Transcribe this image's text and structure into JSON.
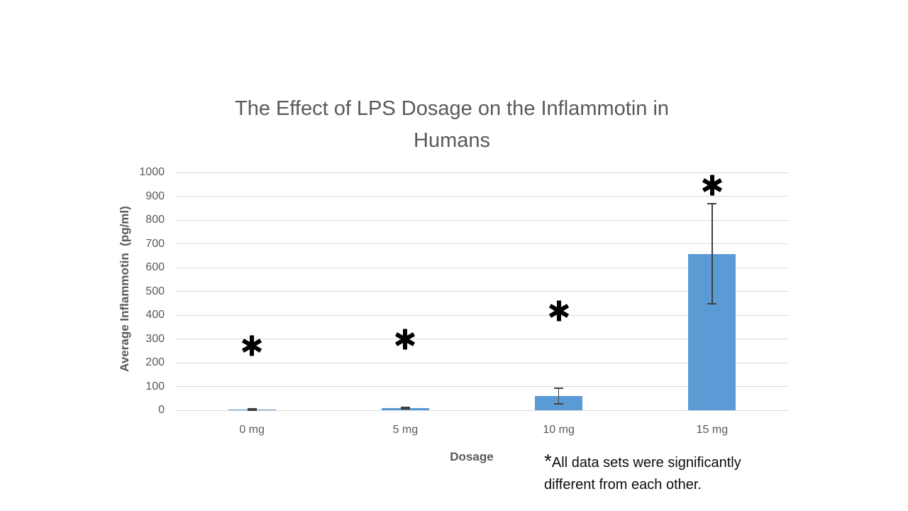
{
  "slide": {
    "background": "#ffffff"
  },
  "chart_data": {
    "type": "bar",
    "title": "The Effect of LPS Dosage on the Inflammotin in Humans",
    "title_lines": [
      "The Effect of LPS Dosage on the Inflammotin in",
      "Humans"
    ],
    "xlabel": "Dosage",
    "ylabel": "Average Inflammotin  (pg/ml)",
    "categories": [
      "0 mg",
      "5 mg",
      "10 mg",
      "15 mg"
    ],
    "values": [
      2,
      9,
      60,
      657
    ],
    "error_bars": {
      "low": [
        0,
        6,
        27,
        447
      ],
      "high": [
        5,
        12,
        93,
        868
      ]
    },
    "annotations": [
      {
        "category": "0 mg",
        "symbol": "*",
        "y": 272
      },
      {
        "category": "5 mg",
        "symbol": "*",
        "y": 298
      },
      {
        "category": "10 mg",
        "symbol": "*",
        "y": 418
      },
      {
        "category": "15 mg",
        "symbol": "*",
        "y": 947
      }
    ],
    "ylim": [
      0,
      1000
    ],
    "yticks": [
      0,
      100,
      200,
      300,
      400,
      500,
      600,
      700,
      800,
      900,
      1000
    ],
    "grid": true,
    "legend": false
  },
  "footnote": {
    "marker": "*",
    "text": "All data sets were significantly different from each other."
  },
  "colors": {
    "bar": "#5b9bd5",
    "grid": "#d9d9d9",
    "axis_text": "#595959",
    "title_text": "#595959",
    "error_bar": "#404040",
    "annotation": "#000000",
    "footnote_text": "#0d0d0d"
  }
}
